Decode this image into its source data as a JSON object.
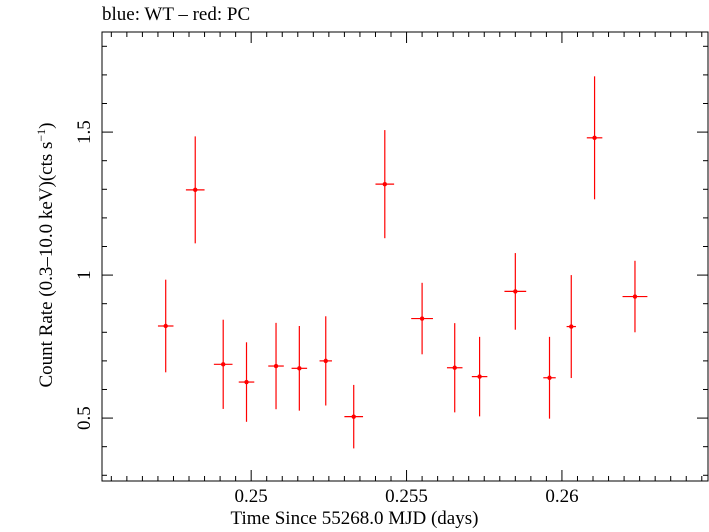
{
  "chart_data": {
    "type": "scatter",
    "title": "blue: WT – red: PC",
    "xlabel": "Time Since 55268.0 MJD (days)",
    "ylabel_main": "Count Rate (0.3–10.0 keV)(cts s",
    "ylabel_sup": "−1",
    "ylabel_end": ")",
    "xlim": [
      0.2452,
      0.2647
    ],
    "ylim": [
      0.28,
      1.85
    ],
    "xticks": [
      0.25,
      0.255,
      0.26
    ],
    "xtick_labels": [
      "0.25",
      "0.255",
      "0.26"
    ],
    "yticks": [
      0.5,
      1,
      1.5
    ],
    "ytick_labels": [
      "0.5",
      "1",
      "1.5"
    ],
    "grid": false,
    "series": [
      {
        "color": "#ff0000",
        "points": [
          {
            "x": 0.24725,
            "xerr": 0.00025,
            "y": 0.822,
            "yerr": 0.162
          },
          {
            "x": 0.2482,
            "xerr": 0.0003,
            "y": 1.298,
            "yerr": 0.187
          },
          {
            "x": 0.2491,
            "xerr": 0.0003,
            "y": 0.688,
            "yerr": 0.156
          },
          {
            "x": 0.24985,
            "xerr": 0.00025,
            "y": 0.626,
            "yerr": 0.139
          },
          {
            "x": 0.2508,
            "xerr": 0.00025,
            "y": 0.682,
            "yerr": 0.151
          },
          {
            "x": 0.25155,
            "xerr": 0.00025,
            "y": 0.674,
            "yerr": 0.148
          },
          {
            "x": 0.2524,
            "xerr": 0.0002,
            "y": 0.7,
            "yerr": 0.156
          },
          {
            "x": 0.2533,
            "xerr": 0.0003,
            "y": 0.505,
            "yerr": 0.111
          },
          {
            "x": 0.2543,
            "xerr": 0.0003,
            "y": 1.318,
            "yerr": 0.189
          },
          {
            "x": 0.2555,
            "xerr": 0.00035,
            "y": 0.848,
            "yerr": 0.125
          },
          {
            "x": 0.25655,
            "xerr": 0.00025,
            "y": 0.676,
            "yerr": 0.156
          },
          {
            "x": 0.25735,
            "xerr": 0.00025,
            "y": 0.645,
            "yerr": 0.139
          },
          {
            "x": 0.2585,
            "xerr": 0.00035,
            "y": 0.943,
            "yerr": 0.134
          },
          {
            "x": 0.2596,
            "xerr": 0.0002,
            "y": 0.641,
            "yerr": 0.143
          },
          {
            "x": 0.2603,
            "xerr": 0.00015,
            "y": 0.82,
            "yerr": 0.18
          },
          {
            "x": 0.26105,
            "xerr": 0.00025,
            "y": 1.48,
            "yerr": 0.215
          },
          {
            "x": 0.26235,
            "xerr": 0.0004,
            "y": 0.925,
            "yerr": 0.125
          }
        ]
      }
    ]
  }
}
